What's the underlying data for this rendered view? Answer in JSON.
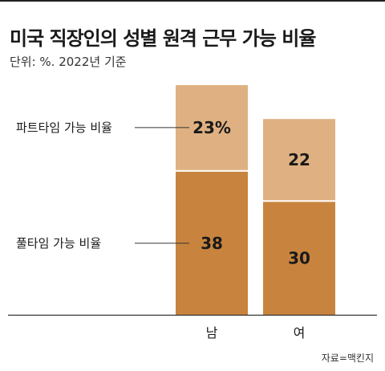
{
  "title": "미국 직장인의 성별 원격 근무 가능 비율",
  "subtitle": "단위: %. 2022년 기준",
  "source": "자료=맥킨지",
  "colors": {
    "fulltime": "#c8843e",
    "parttime": "#dfb182",
    "axis": "#333333",
    "text": "#1a1a1a"
  },
  "chart_data": {
    "type": "bar",
    "stacked": true,
    "categories": [
      "남",
      "여"
    ],
    "series": [
      {
        "name": "풀타임 가능 비율",
        "values": [
          38,
          30
        ],
        "labels": [
          "38",
          "30"
        ]
      },
      {
        "name": "파트타임 가능 비율",
        "values": [
          23,
          22
        ],
        "labels": [
          "23%",
          "22"
        ]
      }
    ],
    "ylim": [
      0,
      61
    ]
  }
}
